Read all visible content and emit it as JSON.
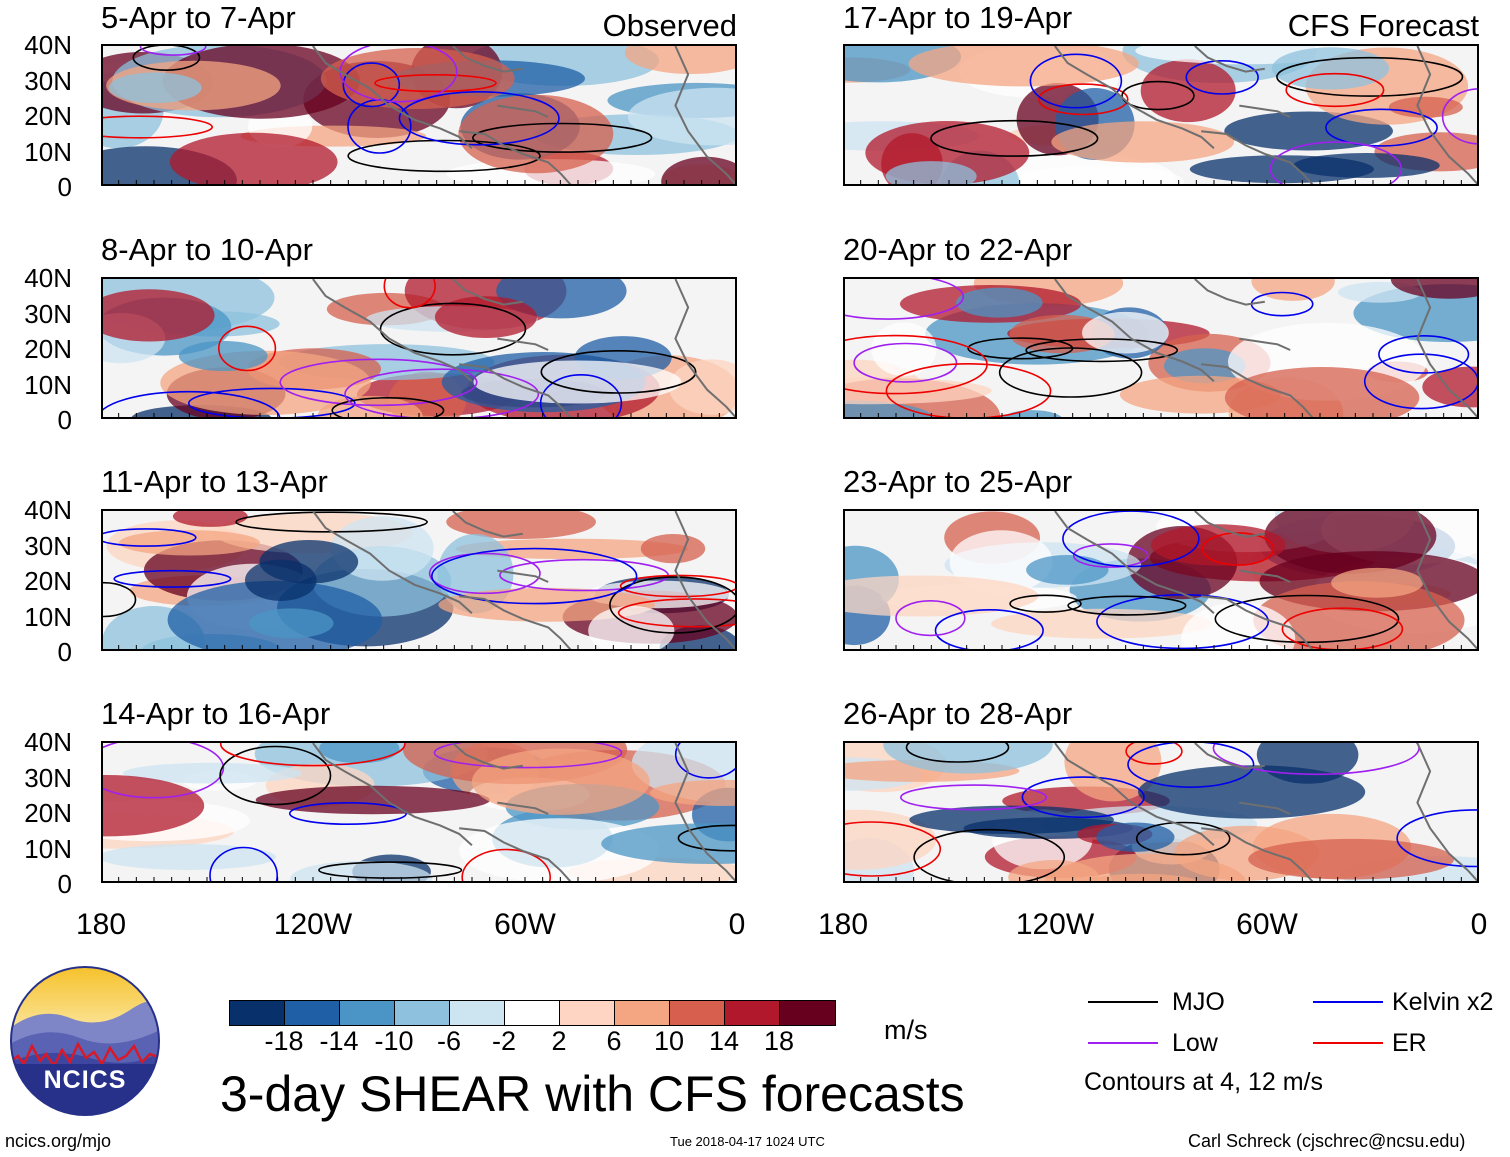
{
  "panels": [
    {
      "label": "5-Apr to 7-Apr",
      "note": "Observed"
    },
    {
      "label": "17-Apr to 19-Apr",
      "note": "CFS Forecast"
    },
    {
      "label": "8-Apr to 10-Apr",
      "note": ""
    },
    {
      "label": "20-Apr to 22-Apr",
      "note": ""
    },
    {
      "label": "11-Apr to 13-Apr",
      "note": ""
    },
    {
      "label": "23-Apr to 25-Apr",
      "note": ""
    },
    {
      "label": "14-Apr to 16-Apr",
      "note": ""
    },
    {
      "label": "26-Apr to 28-Apr",
      "note": ""
    }
  ],
  "lat_labels": [
    "40N",
    "30N",
    "20N",
    "10N",
    "0"
  ],
  "lon_labels": [
    "180",
    "120W",
    "60W",
    "0"
  ],
  "colorbar": {
    "colors": [
      "#08306b",
      "#1f5fa6",
      "#4b95c6",
      "#8ec1de",
      "#cde4f1",
      "#ffffff",
      "#fdd5c2",
      "#f4a582",
      "#d6604d",
      "#b2182b",
      "#67001f"
    ],
    "ticks": [
      "-18",
      "-14",
      "-10",
      "-6",
      "-2",
      "2",
      "6",
      "10",
      "14",
      "18"
    ],
    "units": "m/s"
  },
  "legend": {
    "items": [
      {
        "label": "MJO",
        "color": "#000000"
      },
      {
        "label": "Kelvin x2",
        "color": "#0000ee"
      },
      {
        "label": "Low",
        "color": "#a020f0"
      },
      {
        "label": "ER",
        "color": "#ee0000"
      }
    ],
    "note": "Contours at 4, 12 m/s"
  },
  "title": "3-day SHEAR with CFS forecasts",
  "logo_text": "NCICS",
  "footer": {
    "url": "ncics.org/mjo",
    "timestamp": "Tue 2018-04-17 1024 UTC",
    "credit": "Carl Schreck (cjschrec@ncsu.edu)"
  }
}
